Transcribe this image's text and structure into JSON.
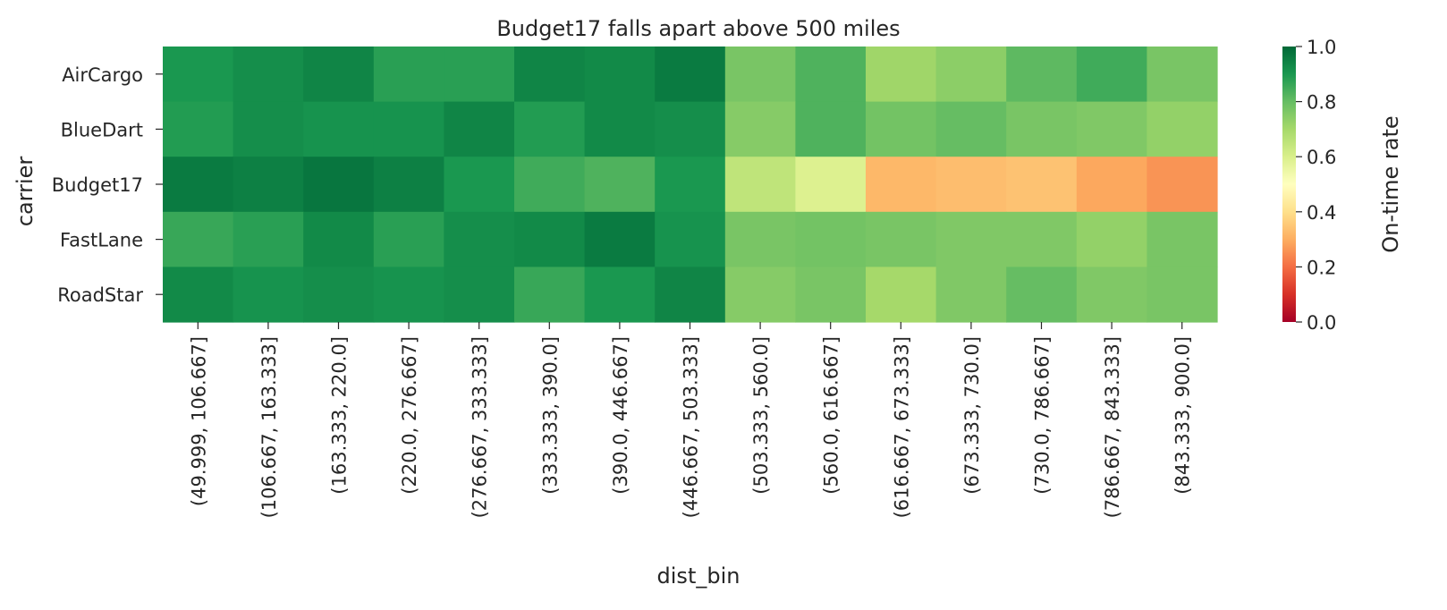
{
  "chart_data": {
    "type": "heatmap",
    "title": "Budget17 falls apart above 500 miles",
    "xlabel": "dist_bin",
    "ylabel": "carrier",
    "colorbar_label": "On-time rate",
    "colormap": "RdYlGn",
    "vmin": 0.0,
    "vmax": 1.0,
    "colorbar_ticks": [
      "0.0",
      "0.2",
      "0.4",
      "0.6",
      "0.8",
      "1.0"
    ],
    "rows": [
      "AirCargo",
      "BlueDart",
      "Budget17",
      "FastLane",
      "RoadStar"
    ],
    "columns": [
      "(49.999, 106.667]",
      "(106.667, 163.333]",
      "(163.333, 220.0]",
      "(220.0, 276.667]",
      "(276.667, 333.333]",
      "(333.333, 390.0]",
      "(390.0, 446.667]",
      "(446.667, 503.333]",
      "(503.333, 560.0]",
      "(560.0, 616.667]",
      "(616.667, 673.333]",
      "(673.333, 730.0]",
      "(730.0, 786.667]",
      "(786.667, 843.333]",
      "(843.333, 900.0]"
    ],
    "values": [
      [
        0.9,
        0.92,
        0.94,
        0.88,
        0.88,
        0.94,
        0.93,
        0.96,
        0.77,
        0.83,
        0.71,
        0.74,
        0.81,
        0.85,
        0.77
      ],
      [
        0.89,
        0.92,
        0.91,
        0.91,
        0.94,
        0.89,
        0.93,
        0.92,
        0.75,
        0.83,
        0.78,
        0.8,
        0.77,
        0.76,
        0.73
      ],
      [
        0.96,
        0.95,
        0.97,
        0.95,
        0.9,
        0.85,
        0.83,
        0.9,
        0.65,
        0.59,
        0.32,
        0.33,
        0.34,
        0.29,
        0.26
      ],
      [
        0.86,
        0.88,
        0.93,
        0.88,
        0.92,
        0.93,
        0.96,
        0.91,
        0.77,
        0.78,
        0.77,
        0.76,
        0.76,
        0.73,
        0.77
      ],
      [
        0.93,
        0.91,
        0.92,
        0.91,
        0.92,
        0.86,
        0.9,
        0.94,
        0.75,
        0.77,
        0.7,
        0.76,
        0.8,
        0.76,
        0.77
      ]
    ]
  }
}
